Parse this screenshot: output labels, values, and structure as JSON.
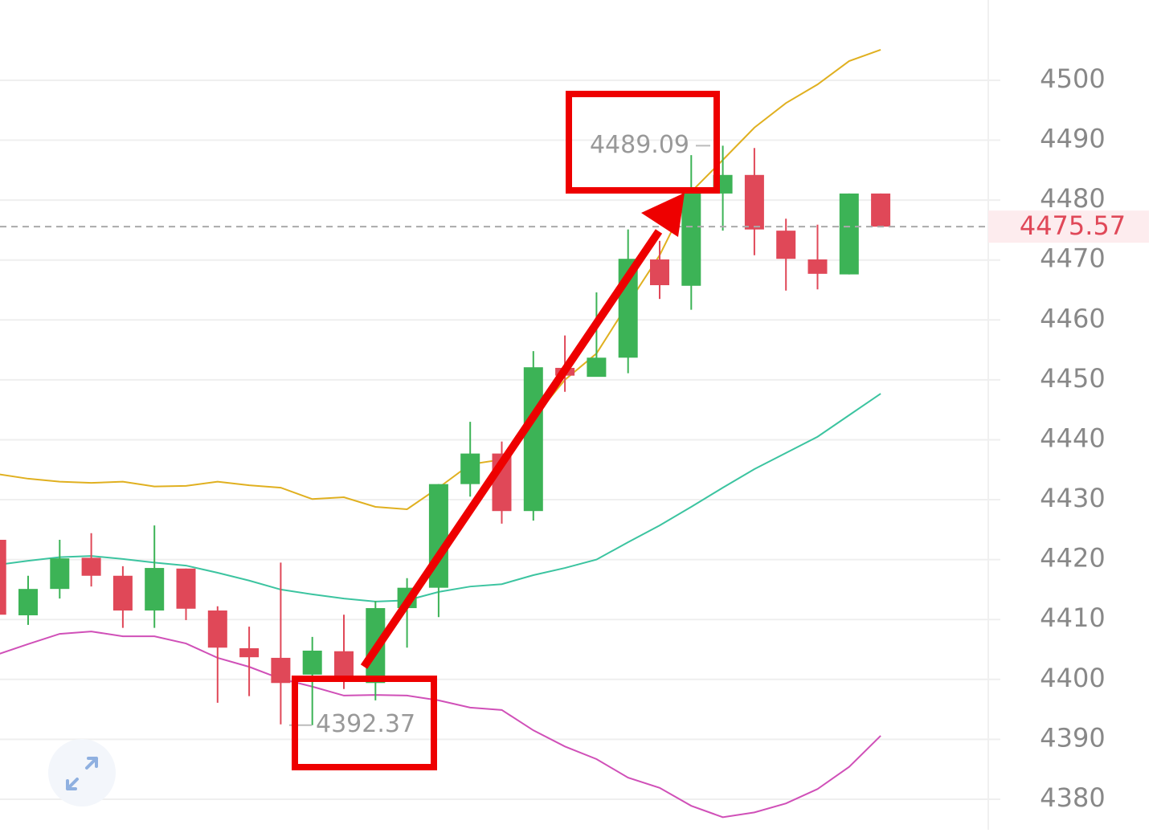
{
  "chart_data": {
    "type": "candlestick",
    "open": [
      4423.3,
      4410.7,
      4415.1,
      4420.3,
      4417.3,
      4411.5,
      4418.5,
      4411.5,
      4405.2,
      4403.6,
      4400.8,
      4404.7,
      4399.4,
      4411.9,
      4415.3,
      4432.6,
      4437.7,
      4428.1,
      4452.0,
      4450.5,
      4453.7,
      4470.1,
      4465.7,
      4481.1,
      4484.2,
      4474.9,
      4470.1,
      4467.6,
      4481.1
    ],
    "high": [
      4423.3,
      4417.3,
      4423.3,
      4424.4,
      4418.9,
      4425.7,
      4418.5,
      4412.2,
      4408.8,
      4419.5,
      4407.1,
      4410.8,
      4413.1,
      4416.9,
      4432.6,
      4443.0,
      4439.7,
      4454.8,
      4457.4,
      4464.6,
      4475.1,
      4473.2,
      4487.5,
      4489.09,
      4488.7,
      4476.9,
      4475.9,
      4481.1,
      4481.1
    ],
    "low": [
      4410.8,
      4409.1,
      4413.5,
      4415.5,
      4408.6,
      4408.6,
      4409.9,
      4396.1,
      4397.2,
      4392.5,
      4392.37,
      4398.4,
      4396.5,
      4405.3,
      4410.4,
      4430.5,
      4426.0,
      4426.5,
      4448.0,
      4451.1,
      4451.1,
      4463.5,
      4461.7,
      4474.9,
      4470.8,
      4464.9,
      4465.1,
      4467.6,
      4475.57
    ],
    "close": [
      4410.8,
      4415.1,
      4420.2,
      4417.3,
      4411.5,
      4418.6,
      4411.8,
      4405.3,
      4403.7,
      4399.4,
      4404.8,
      4400.5,
      4411.9,
      4415.3,
      4432.6,
      4437.7,
      4428.1,
      4452.1,
      4450.7,
      4453.7,
      4470.2,
      4465.8,
      4481.2,
      4484.2,
      4475.1,
      4470.2,
      4467.7,
      4481.1,
      4475.57
    ],
    "up_color": "#3cb356",
    "down_color": "#e04858",
    "lines": [
      {
        "color": "#e0b020",
        "values": [
          4434.3,
          4433.5,
          4433.0,
          4432.8,
          4433.0,
          4432.2,
          4432.3,
          4433.0,
          4432.4,
          4432.0,
          4430.1,
          4430.4,
          4428.8,
          4428.4,
          4432.0,
          4435.9,
          4436.7,
          4443.6,
          4450.0,
          4454.4,
          4462.7,
          4470.8,
          4481.4,
          4486.7,
          4492.1,
          4496.2,
          4499.3,
          4503.2,
          4505.1
        ]
      },
      {
        "color": "#3cc4a0",
        "values": [
          4419.1,
          4419.8,
          4420.4,
          4420.6,
          4420.1,
          4419.5,
          4419.0,
          4417.8,
          4416.5,
          4415.0,
          4414.2,
          4413.5,
          4413.0,
          4413.2,
          4414.6,
          4415.5,
          4415.9,
          4417.4,
          4418.6,
          4420.0,
          4422.9,
          4425.7,
          4428.8,
          4432.0,
          4435.1,
          4437.8,
          4440.5,
          4444.1,
          4447.7
        ]
      },
      {
        "color": "#d050b8",
        "values": [
          4404.1,
          4405.9,
          4407.6,
          4408.0,
          4407.2,
          4407.2,
          4406.0,
          4403.6,
          4402.1,
          4400.1,
          4398.8,
          4397.3,
          4397.4,
          4397.3,
          4396.5,
          4395.3,
          4394.9,
          4391.5,
          4388.8,
          4386.7,
          4383.6,
          4381.9,
          4378.9,
          4377.0,
          4377.8,
          4379.3,
          4381.7,
          4385.4,
          4390.6
        ]
      }
    ],
    "ylim": [
      4374.9,
      4513.4
    ],
    "yticks": [
      4380,
      4390,
      4400,
      4410,
      4420,
      4430,
      4440,
      4450,
      4460,
      4470,
      4480,
      4490,
      4500
    ],
    "grid": true
  }
}
